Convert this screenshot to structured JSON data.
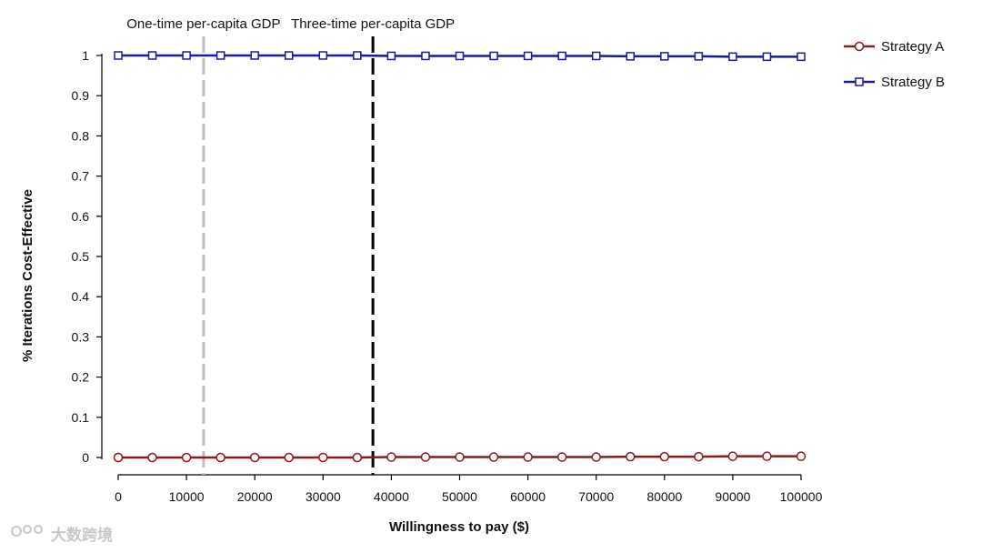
{
  "chart_data": {
    "type": "line",
    "title": "",
    "xlabel": "Willingness to pay ($)",
    "ylabel": "% Iterations Cost-Effective",
    "xlim": [
      0,
      100000
    ],
    "ylim": [
      0,
      1
    ],
    "xticks": [
      "0",
      "10000",
      "20000",
      "30000",
      "40000",
      "50000",
      "60000",
      "70000",
      "80000",
      "90000",
      "100000"
    ],
    "yticks": [
      "0",
      "0.1",
      "0.2",
      "0.3",
      "0.4",
      "0.5",
      "0.6",
      "0.7",
      "0.8",
      "0.9",
      "1"
    ],
    "grid": false,
    "legend_position": "top-right",
    "x": [
      0,
      5000,
      10000,
      15000,
      20000,
      25000,
      30000,
      35000,
      40000,
      45000,
      50000,
      55000,
      60000,
      65000,
      70000,
      75000,
      80000,
      85000,
      90000,
      95000,
      100000
    ],
    "series": [
      {
        "name": "Strategy A",
        "color": "#8b1a1a",
        "marker": "circle",
        "values": [
          0,
          0,
          0,
          0,
          0,
          0,
          0,
          0,
          0.001,
          0.001,
          0.001,
          0.001,
          0.001,
          0.001,
          0.001,
          0.002,
          0.002,
          0.002,
          0.003,
          0.003,
          0.003
        ]
      },
      {
        "name": "Strategy B",
        "color": "#1a1a9c",
        "marker": "square",
        "values": [
          1,
          1,
          1,
          1,
          1,
          1,
          1,
          1,
          0.999,
          0.999,
          0.999,
          0.999,
          0.999,
          0.999,
          0.999,
          0.998,
          0.998,
          0.998,
          0.997,
          0.997,
          0.997
        ]
      }
    ],
    "reference_lines": [
      {
        "label": "One-time per-capita GDP",
        "x": 12500,
        "color": "#c0c0c0",
        "style": "dashed"
      },
      {
        "label": "Three-time per-capita GDP",
        "x": 37300,
        "color": "#000000",
        "style": "dashed"
      }
    ]
  },
  "watermark": {
    "text": "大数跨境",
    "icon": "logo-icon"
  }
}
